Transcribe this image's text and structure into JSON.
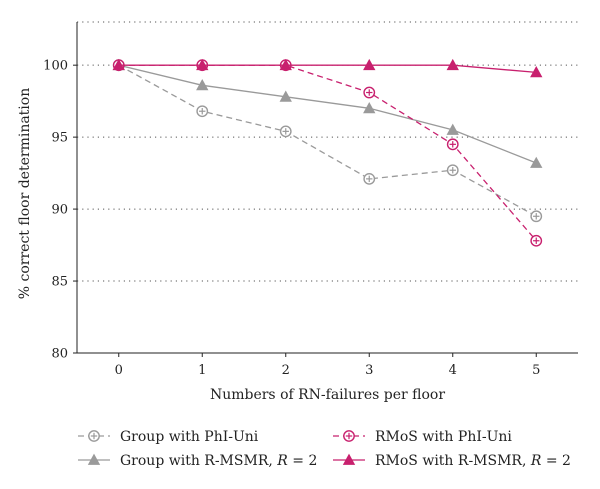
{
  "chart_data": {
    "type": "line",
    "title": "",
    "xlabel": "Numbers of RN-failures per floor",
    "ylabel": "% correct floor determination",
    "x": [
      0,
      1,
      2,
      3,
      4,
      5
    ],
    "xlim": [
      -0.5,
      5.5
    ],
    "ylim": [
      80,
      103
    ],
    "yticks": [
      80,
      85,
      90,
      95,
      100
    ],
    "grid": "horizontal dotted",
    "legend_position": "bottom",
    "series": [
      {
        "name_parts": [
          "Group with PhI-Uni"
        ],
        "values": [
          100,
          96.8,
          95.4,
          92.1,
          92.7,
          89.5
        ],
        "color": "#9a9a9a",
        "line": "dashed",
        "marker": "circle-errorbar"
      },
      {
        "name_parts": [
          "RMoS with PhI-Uni"
        ],
        "values": [
          100,
          100,
          100,
          98.1,
          94.5,
          87.8
        ],
        "color": "#c8206e",
        "line": "dashed",
        "marker": "circle-errorbar"
      },
      {
        "name_parts": [
          "Group with R-MSMR, ",
          "R",
          " = 2"
        ],
        "values": [
          100,
          98.6,
          97.8,
          97.0,
          95.5,
          93.2
        ],
        "color": "#9a9a9a",
        "line": "solid",
        "marker": "triangle"
      },
      {
        "name_parts": [
          "RMoS with R-MSMR, ",
          "R",
          " = 2"
        ],
        "values": [
          100,
          100,
          100,
          100,
          100,
          99.5
        ],
        "color": "#c8206e",
        "line": "solid",
        "marker": "triangle"
      }
    ]
  }
}
